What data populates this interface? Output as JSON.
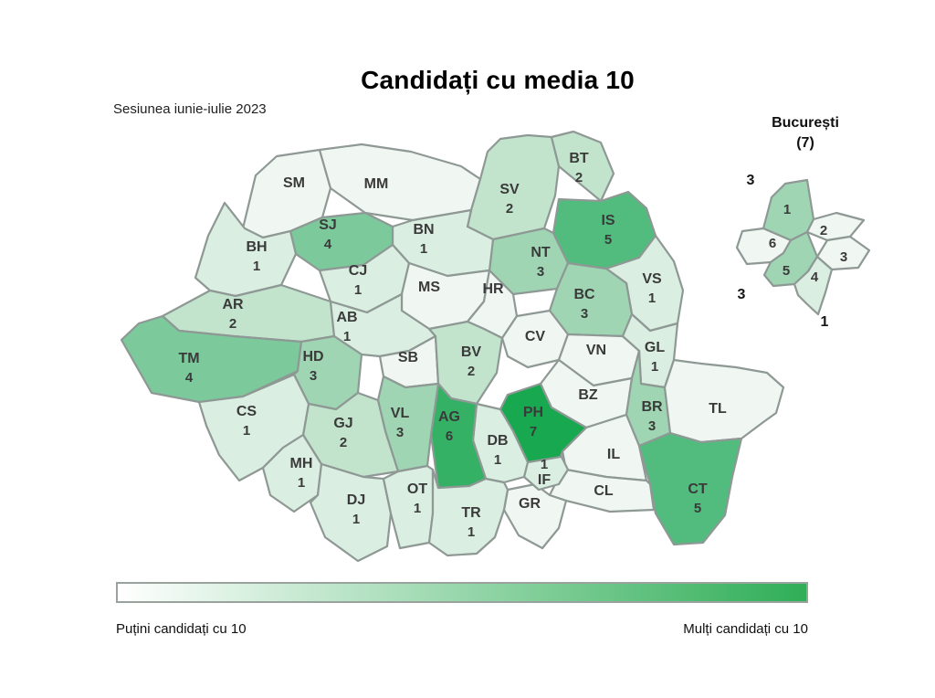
{
  "title": "Candidați cu media 10",
  "subtitle": "Sesiunea iunie-iulie 2023",
  "inset": {
    "title": "București",
    "total_label": "(7)"
  },
  "legend": {
    "low_label": "Puțini candidați cu 10",
    "high_label": "Mulți candidați cu 10",
    "gradient_start": "#ffffff",
    "gradient_end": "#2fae57"
  },
  "color_scale": [
    "#f0f7f2",
    "#daeee1",
    "#c2e4cd",
    "#9fd5b3",
    "#7cc99c",
    "#52bc7e",
    "#35b166",
    "#17a850"
  ],
  "chart_data": {
    "type": "heatmap",
    "subtype": "choropleth-map",
    "geography": "Romania counties",
    "title": "Candidați cu media 10",
    "session": "Sesiunea iunie-iulie 2023",
    "legend_low": "Puțini candidați cu 10",
    "legend_high": "Mulți candidați cu 10",
    "value_range": [
      0,
      7
    ],
    "regions": [
      {
        "code": "SM",
        "value": 0
      },
      {
        "code": "MM",
        "value": 0
      },
      {
        "code": "BH",
        "value": 1
      },
      {
        "code": "SJ",
        "value": 4
      },
      {
        "code": "SV",
        "value": 2
      },
      {
        "code": "BT",
        "value": 2
      },
      {
        "code": "IS",
        "value": 5
      },
      {
        "code": "BN",
        "value": 1
      },
      {
        "code": "CJ",
        "value": 1
      },
      {
        "code": "NT",
        "value": 3
      },
      {
        "code": "VS",
        "value": 1
      },
      {
        "code": "BC",
        "value": 3
      },
      {
        "code": "MS",
        "value": 0
      },
      {
        "code": "HR",
        "value": 0
      },
      {
        "code": "AR",
        "value": 2
      },
      {
        "code": "AB",
        "value": 1
      },
      {
        "code": "TM",
        "value": 4
      },
      {
        "code": "HD",
        "value": 3
      },
      {
        "code": "SB",
        "value": 0
      },
      {
        "code": "BV",
        "value": 2
      },
      {
        "code": "CV",
        "value": 0
      },
      {
        "code": "VN",
        "value": 0
      },
      {
        "code": "GL",
        "value": 1
      },
      {
        "code": "BZ",
        "value": 0
      },
      {
        "code": "BR",
        "value": 3
      },
      {
        "code": "TL",
        "value": 0
      },
      {
        "code": "CT",
        "value": 5
      },
      {
        "code": "IL",
        "value": 0
      },
      {
        "code": "CL",
        "value": 0
      },
      {
        "code": "IF",
        "value": 1
      },
      {
        "code": "GR",
        "value": 0
      },
      {
        "code": "PH",
        "value": 7
      },
      {
        "code": "DB",
        "value": 1
      },
      {
        "code": "AG",
        "value": 6
      },
      {
        "code": "VL",
        "value": 3
      },
      {
        "code": "GJ",
        "value": 2
      },
      {
        "code": "CS",
        "value": 1
      },
      {
        "code": "MH",
        "value": 1
      },
      {
        "code": "DJ",
        "value": 1
      },
      {
        "code": "OT",
        "value": 1
      },
      {
        "code": "TR",
        "value": 1
      }
    ],
    "bucharest": {
      "title": "București",
      "total": 7,
      "sectors": [
        {
          "sector": "1",
          "value": 3
        },
        {
          "sector": "2",
          "value": 0
        },
        {
          "sector": "3",
          "value": 0
        },
        {
          "sector": "4",
          "value": 1
        },
        {
          "sector": "5",
          "value": 3
        },
        {
          "sector": "6",
          "value": 0
        }
      ]
    }
  }
}
